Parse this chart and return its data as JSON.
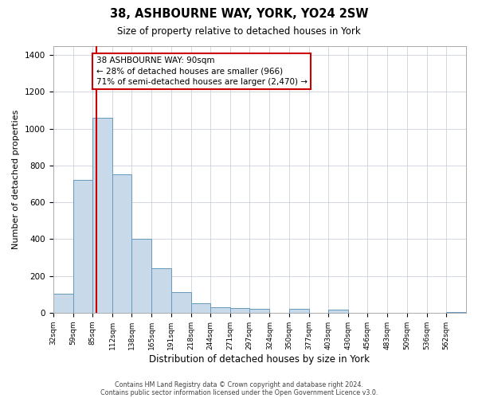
{
  "title": "38, ASHBOURNE WAY, YORK, YO24 2SW",
  "subtitle": "Size of property relative to detached houses in York",
  "xlabel": "Distribution of detached houses by size in York",
  "ylabel": "Number of detached properties",
  "bar_color": "#c8daea",
  "bar_edge_color": "#6699bb",
  "background_color": "#ffffff",
  "grid_color": "#c0c8d8",
  "categories": [
    "32sqm",
    "59sqm",
    "85sqm",
    "112sqm",
    "138sqm",
    "165sqm",
    "191sqm",
    "218sqm",
    "244sqm",
    "271sqm",
    "297sqm",
    "324sqm",
    "350sqm",
    "377sqm",
    "403sqm",
    "430sqm",
    "456sqm",
    "483sqm",
    "509sqm",
    "536sqm",
    "562sqm"
  ],
  "values": [
    105,
    720,
    1060,
    750,
    400,
    240,
    110,
    50,
    30,
    25,
    20,
    0,
    20,
    0,
    15,
    0,
    0,
    0,
    0,
    0,
    5
  ],
  "bin_edges": [
    32,
    59,
    85,
    112,
    138,
    165,
    191,
    218,
    244,
    271,
    297,
    324,
    350,
    377,
    403,
    430,
    456,
    483,
    509,
    536,
    562,
    589
  ],
  "vline_x": 90,
  "vline_color": "#cc0000",
  "annotation_line1": "38 ASHBOURNE WAY: 90sqm",
  "annotation_line2": "← 28% of detached houses are smaller (966)",
  "annotation_line3": "71% of semi-detached houses are larger (2,470) →",
  "annotation_box_color": "#ffffff",
  "annotation_box_edge_color": "#cc0000",
  "ylim": [
    0,
    1450
  ],
  "yticks": [
    0,
    200,
    400,
    600,
    800,
    1000,
    1200,
    1400
  ],
  "footer1": "Contains HM Land Registry data © Crown copyright and database right 2024.",
  "footer2": "Contains public sector information licensed under the Open Government Licence v3.0."
}
